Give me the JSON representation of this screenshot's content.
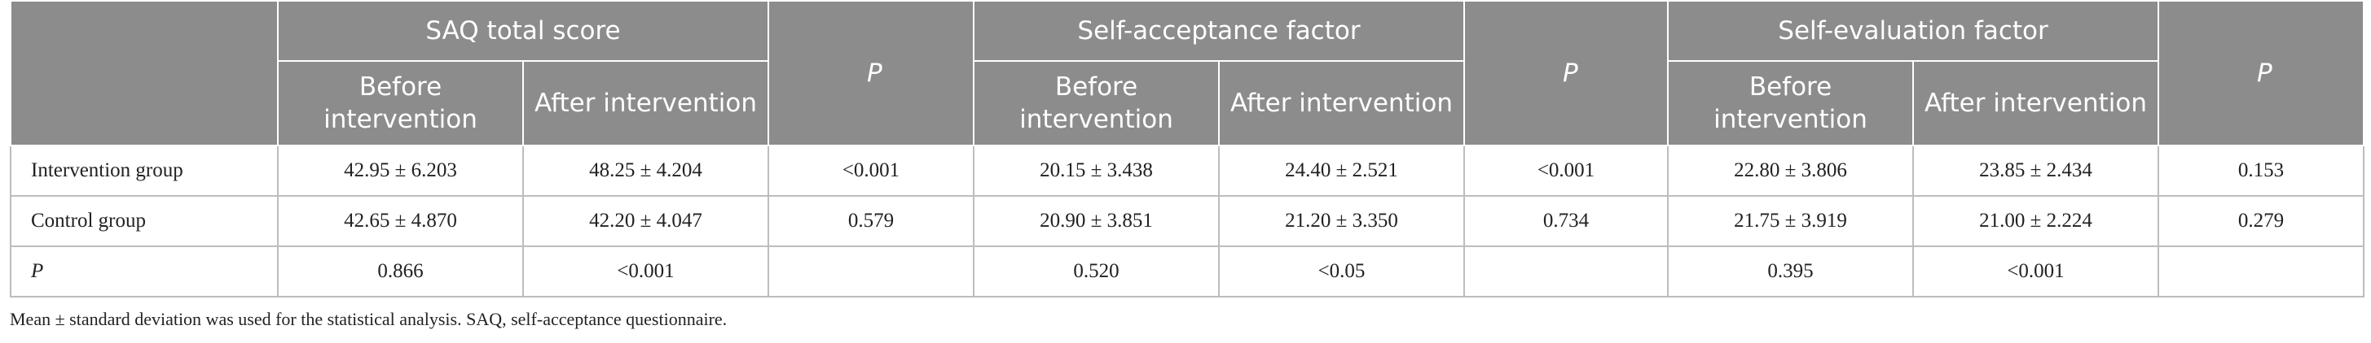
{
  "table": {
    "header": {
      "row1": [
        "SAQ total score",
        "P",
        "Self-acceptance factor",
        "P",
        "Self-evaluation factor",
        "P"
      ],
      "row2": [
        "Before intervention",
        "After intervention",
        "Before intervention",
        "After intervention",
        "Before intervention",
        "After intervention"
      ]
    },
    "rows": [
      {
        "label": "Intervention group",
        "cells": [
          "42.95 ± 6.203",
          "48.25 ± 4.204",
          "<0.001",
          "20.15 ± 3.438",
          "24.40 ± 2.521",
          "<0.001",
          "22.80 ± 3.806",
          "23.85 ± 2.434",
          "0.153"
        ]
      },
      {
        "label": "Control group",
        "cells": [
          "42.65 ± 4.870",
          "42.20 ± 4.047",
          "0.579",
          "20.90 ± 3.851",
          "21.20 ± 3.350",
          "0.734",
          "21.75 ± 3.919",
          "21.00 ± 2.224",
          "0.279"
        ]
      },
      {
        "label": "P",
        "cells": [
          "0.866",
          "<0.001",
          null,
          "0.520",
          "<0.05",
          null,
          "0.395",
          "<0.001",
          null
        ]
      }
    ],
    "footnote": "Mean ± standard deviation was used for the statistical analysis. SAQ, self-acceptance questionnaire."
  }
}
